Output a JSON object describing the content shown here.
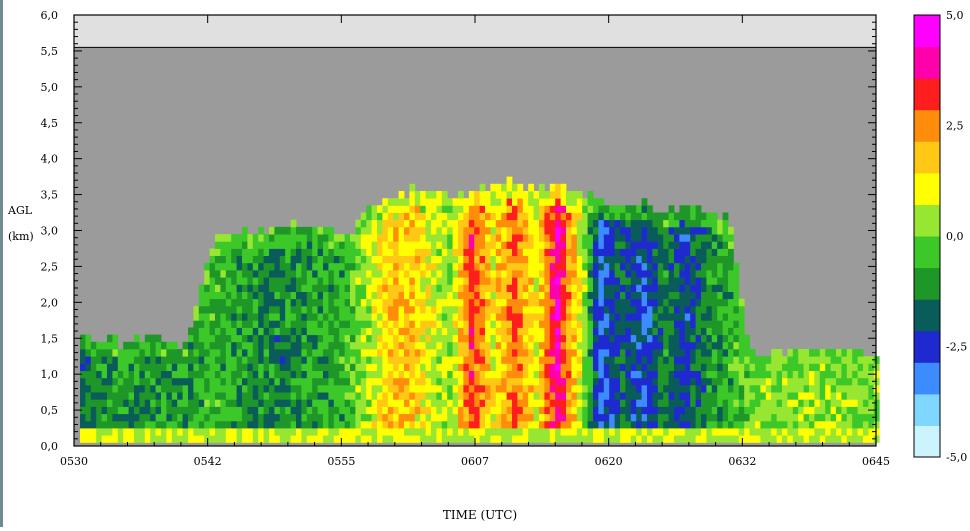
{
  "chart_data": {
    "type": "heatmap",
    "xlabel": "TIME (UTC)",
    "ylabel": [
      "AGL",
      "(km)"
    ],
    "x_ticks": [
      "0530",
      "0542",
      "0555",
      "0607",
      "0620",
      "0632",
      "0645"
    ],
    "y_ticks": [
      "0,0",
      "0,5",
      "1,0",
      "1,5",
      "2,0",
      "2,5",
      "3,0",
      "3,5",
      "4,0",
      "4,5",
      "5,0",
      "5,5",
      "6,0"
    ],
    "xlim": [
      "05:30",
      "06:45"
    ],
    "ylim": [
      0,
      6
    ],
    "colorbar": {
      "ticks": [
        "5,0",
        "2,5",
        "0,0",
        "-2,5",
        "-5,0"
      ],
      "range": [
        -5,
        5
      ],
      "colors": [
        "#ccf4ff",
        "#7fd6ff",
        "#3c8cff",
        "#1e2ad0",
        "#0a5c5a",
        "#1e9628",
        "#3cc828",
        "#96e632",
        "#ffff00",
        "#ffc814",
        "#ff8c0a",
        "#ff1e1e",
        "#ff00aa",
        "#ff00ff"
      ]
    },
    "no_data_color": "#9b9b9b",
    "blank_band_color": "#e0e0e0",
    "columns": [
      {
        "t": "05:30",
        "top": 1.5,
        "v": -1.8
      },
      {
        "t": "05:34",
        "top": 1.4,
        "v": -1.0
      },
      {
        "t": "05:37",
        "top": 1.5,
        "v": -1.2
      },
      {
        "t": "05:40",
        "top": 1.3,
        "v": -0.9
      },
      {
        "t": "05:43",
        "top": 2.9,
        "v": -0.6
      },
      {
        "t": "05:46",
        "top": 2.9,
        "v": -1.1
      },
      {
        "t": "05:49",
        "top": 3.0,
        "v": -1.4
      },
      {
        "t": "05:52",
        "top": 3.1,
        "v": -0.9
      },
      {
        "t": "05:55",
        "top": 2.8,
        "v": -0.7
      },
      {
        "t": "05:57",
        "top": 3.2,
        "v": 0.4
      },
      {
        "t": "05:59",
        "top": 3.4,
        "v": 1.6
      },
      {
        "t": "06:01",
        "top": 3.5,
        "v": 1.9
      },
      {
        "t": "06:03",
        "top": 3.5,
        "v": 1.0
      },
      {
        "t": "06:05",
        "top": 3.4,
        "v": 0.2
      },
      {
        "t": "06:07",
        "top": 3.5,
        "v": 3.2
      },
      {
        "t": "06:09",
        "top": 3.6,
        "v": 1.2
      },
      {
        "t": "06:11",
        "top": 3.6,
        "v": 2.8
      },
      {
        "t": "06:13",
        "top": 3.5,
        "v": 1.0
      },
      {
        "t": "06:15",
        "top": 3.6,
        "v": 4.0
      },
      {
        "t": "06:17",
        "top": 3.5,
        "v": 1.1
      },
      {
        "t": "06:19",
        "top": 3.3,
        "v": -2.8
      },
      {
        "t": "06:21",
        "top": 3.3,
        "v": -1.6
      },
      {
        "t": "06:23",
        "top": 3.4,
        "v": -2.6
      },
      {
        "t": "06:25",
        "top": 3.2,
        "v": -1.3
      },
      {
        "t": "06:27",
        "top": 3.3,
        "v": -2.4
      },
      {
        "t": "06:29",
        "top": 3.2,
        "v": -1.2
      },
      {
        "t": "06:31",
        "top": 3.1,
        "v": -0.8
      },
      {
        "t": "06:33",
        "top": 1.2,
        "v": 0.1
      },
      {
        "t": "06:38",
        "top": 1.3,
        "v": 0.2
      },
      {
        "t": "06:43",
        "top": 1.3,
        "v": 0.1
      }
    ]
  }
}
